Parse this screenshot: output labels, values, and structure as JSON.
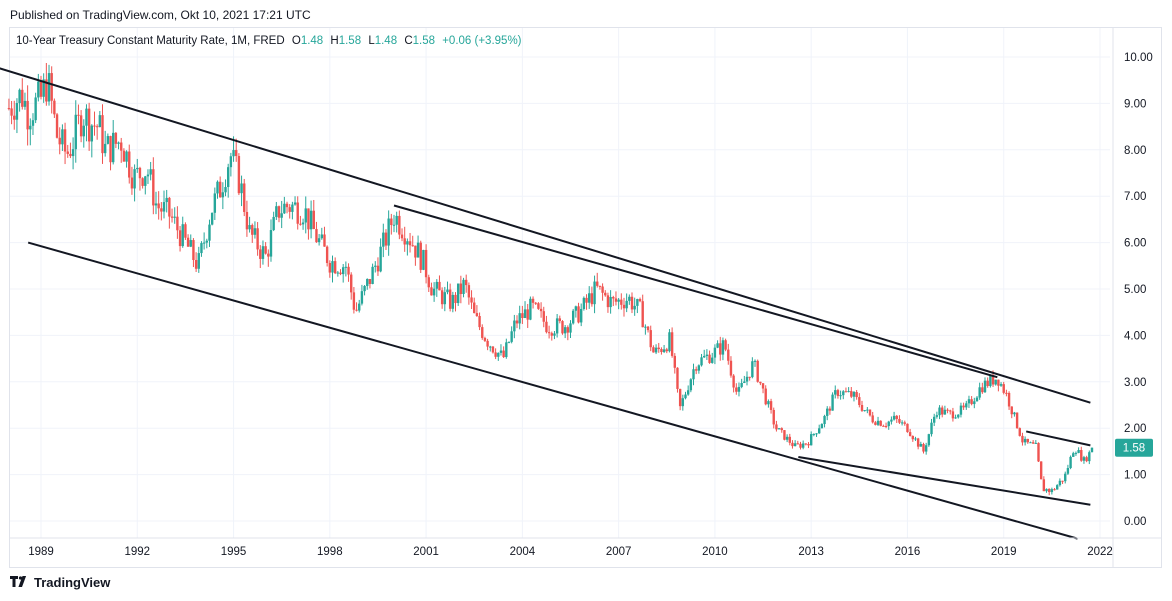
{
  "header": {
    "published": "Published on TradingView.com, Okt 10, 2021 17:21 UTC"
  },
  "legend": {
    "title": "10-Year Treasury Constant Maturity Rate, 1M, FRED",
    "o_label": "O",
    "o_value": "1.48",
    "h_label": "H",
    "h_value": "1.58",
    "l_label": "L",
    "l_value": "1.48",
    "c_label": "C",
    "c_value": "1.58",
    "change": "+0.06 (+3.95%)"
  },
  "footer": {
    "brand": "TradingView"
  },
  "colors": {
    "up": "#26a69a",
    "down": "#ef5350",
    "trendline": "#131722",
    "grid": "#f0f3fa"
  },
  "chart_data": {
    "type": "candlestick",
    "x_tick_labels": [
      "1989",
      "1992",
      "1995",
      "1998",
      "2001",
      "2004",
      "2007",
      "2010",
      "2013",
      "2016",
      "2019",
      "2022"
    ],
    "y_tick_labels": [
      "0.00",
      "1.00",
      "2.00",
      "3.00",
      "4.00",
      "5.00",
      "6.00",
      "7.00",
      "8.00",
      "9.00",
      "10.00"
    ],
    "ylim": [
      -0.45,
      10.3
    ],
    "xlim": [
      1988.0,
      2021.9
    ],
    "last_price_label": "1.58",
    "last_price": 1.58,
    "grid": true,
    "price_path": [
      [
        1988.0,
        8.9
      ],
      [
        1988.4,
        9.2
      ],
      [
        1988.6,
        8.8
      ],
      [
        1989.0,
        9.1
      ],
      [
        1989.2,
        9.5
      ],
      [
        1989.5,
        8.3
      ],
      [
        1989.8,
        7.9
      ],
      [
        1990.0,
        8.2
      ],
      [
        1990.3,
        8.8
      ],
      [
        1990.5,
        8.6
      ],
      [
        1990.8,
        8.5
      ],
      [
        1991.0,
        8.0
      ],
      [
        1991.5,
        8.2
      ],
      [
        1991.9,
        7.4
      ],
      [
        1992.3,
        7.6
      ],
      [
        1992.6,
        6.8
      ],
      [
        1993.0,
        6.6
      ],
      [
        1993.5,
        6.0
      ],
      [
        1993.9,
        5.5
      ],
      [
        1994.3,
        6.7
      ],
      [
        1994.6,
        7.2
      ],
      [
        1994.9,
        7.9
      ],
      [
        1995.2,
        7.3
      ],
      [
        1995.5,
        6.2
      ],
      [
        1996.0,
        5.7
      ],
      [
        1996.4,
        6.7
      ],
      [
        1996.7,
        6.8
      ],
      [
        1997.2,
        6.7
      ],
      [
        1997.6,
        6.1
      ],
      [
        1998.0,
        5.6
      ],
      [
        1998.5,
        5.5
      ],
      [
        1998.8,
        4.5
      ],
      [
        1999.3,
        5.3
      ],
      [
        1999.7,
        6.0
      ],
      [
        2000.0,
        6.6
      ],
      [
        2000.5,
        6.1
      ],
      [
        2000.9,
        5.6
      ],
      [
        2001.2,
        5.0
      ],
      [
        2001.8,
        4.7
      ],
      [
        2002.2,
        5.1
      ],
      [
        2002.5,
        4.4
      ],
      [
        2002.9,
        3.9
      ],
      [
        2003.4,
        3.5
      ],
      [
        2003.8,
        4.3
      ],
      [
        2004.3,
        4.6
      ],
      [
        2004.8,
        4.2
      ],
      [
        2005.3,
        4.2
      ],
      [
        2005.8,
        4.5
      ],
      [
        2006.3,
        5.0
      ],
      [
        2006.8,
        4.7
      ],
      [
        2007.3,
        4.8
      ],
      [
        2007.7,
        4.5
      ],
      [
        2008.1,
        3.6
      ],
      [
        2008.6,
        3.9
      ],
      [
        2008.9,
        2.4
      ],
      [
        2009.4,
        3.4
      ],
      [
        2009.9,
        3.6
      ],
      [
        2010.3,
        3.8
      ],
      [
        2010.7,
        2.7
      ],
      [
        2011.2,
        3.4
      ],
      [
        2011.6,
        2.6
      ],
      [
        2011.9,
        2.0
      ],
      [
        2012.5,
        1.6
      ],
      [
        2012.9,
        1.7
      ],
      [
        2013.4,
        2.2
      ],
      [
        2013.8,
        2.8
      ],
      [
        2014.3,
        2.7
      ],
      [
        2014.9,
        2.2
      ],
      [
        2015.3,
        2.1
      ],
      [
        2015.6,
        2.2
      ],
      [
        2016.0,
        2.0
      ],
      [
        2016.5,
        1.5
      ],
      [
        2016.9,
        2.4
      ],
      [
        2017.3,
        2.3
      ],
      [
        2017.8,
        2.4
      ],
      [
        2018.3,
        2.9
      ],
      [
        2018.8,
        3.1
      ],
      [
        2019.1,
        2.7
      ],
      [
        2019.6,
        1.7
      ],
      [
        2020.0,
        1.6
      ],
      [
        2020.2,
        0.7
      ],
      [
        2020.5,
        0.65
      ],
      [
        2020.9,
        0.95
      ],
      [
        2021.2,
        1.6
      ],
      [
        2021.5,
        1.3
      ],
      [
        2021.8,
        1.58
      ]
    ],
    "trendlines": [
      [
        [
          1987.5,
          9.8
        ],
        [
          2021.7,
          2.55
        ]
      ],
      [
        [
          1988.6,
          6.0
        ],
        [
          2021.3,
          -0.38
        ]
      ],
      [
        [
          2000.0,
          6.8
        ],
        [
          2018.8,
          3.1
        ]
      ],
      [
        [
          2012.6,
          1.38
        ],
        [
          2021.7,
          0.35
        ]
      ],
      [
        [
          2019.7,
          1.93
        ],
        [
          2021.7,
          1.63
        ]
      ]
    ]
  }
}
